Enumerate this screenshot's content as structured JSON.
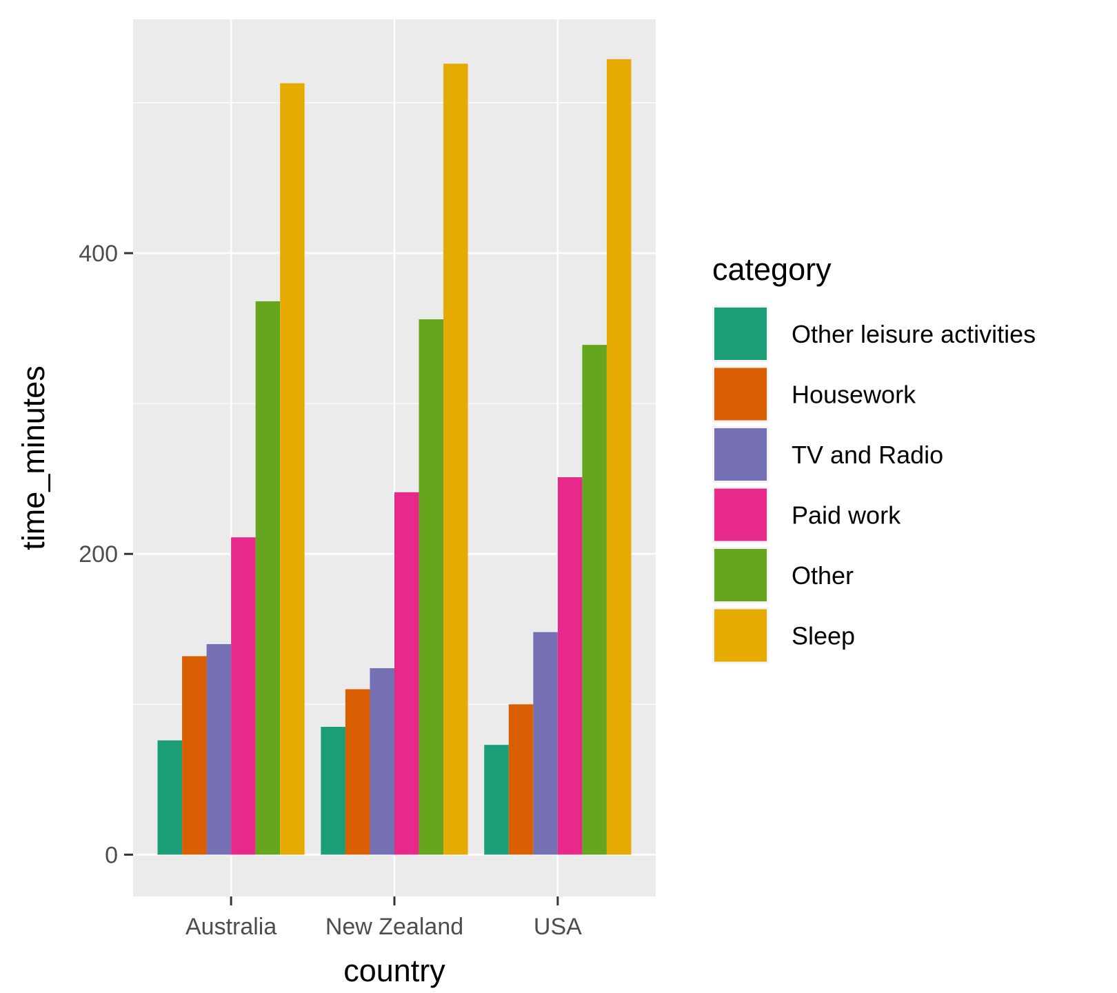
{
  "chart_data": {
    "type": "bar",
    "categories": [
      "Australia",
      "New Zealand",
      "USA"
    ],
    "series": [
      {
        "name": "Other leisure activities",
        "values": [
          76,
          85,
          73
        ],
        "color": "#1B9E77"
      },
      {
        "name": "Housework",
        "values": [
          132,
          110,
          100
        ],
        "color": "#D95F02"
      },
      {
        "name": "TV and Radio",
        "values": [
          140,
          124,
          148
        ],
        "color": "#7570B3"
      },
      {
        "name": "Paid work",
        "values": [
          211,
          241,
          251
        ],
        "color": "#E7298A"
      },
      {
        "name": "Other",
        "values": [
          368,
          356,
          339
        ],
        "color": "#66A61E"
      },
      {
        "name": "Sleep",
        "values": [
          513,
          526,
          529
        ],
        "color": "#E6AB02"
      }
    ],
    "xlabel": "country",
    "ylabel": "time_minutes",
    "ylim": [
      -27.8,
      555.5
    ],
    "y_ticks": [
      0,
      200,
      400
    ],
    "grid": true,
    "legend_title": "category",
    "legend_position": "right",
    "panel_background": "#EBEBEB"
  }
}
